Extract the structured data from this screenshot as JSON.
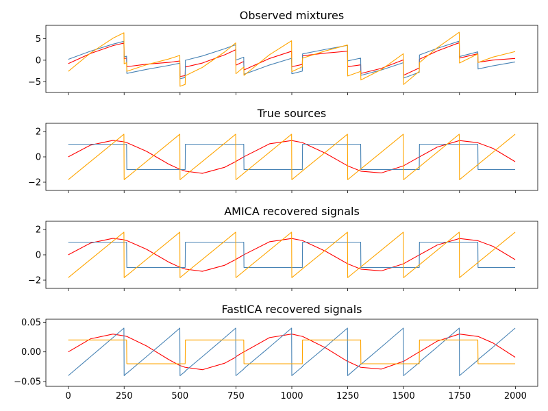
{
  "chart_data": [
    {
      "type": "line",
      "title": "Observed mixtures",
      "x": [
        0,
        100,
        200,
        249,
        250,
        261,
        262,
        350,
        450,
        499,
        500,
        523,
        524,
        600,
        700,
        749,
        750,
        785,
        786,
        900,
        999,
        1000,
        1047,
        1048,
        1150,
        1249,
        1250,
        1308,
        1309,
        1400,
        1499,
        1500,
        1570,
        1571,
        1650,
        1749,
        1750,
        1832,
        1833,
        1900,
        1999
      ],
      "xlim": [
        -100,
        2100
      ],
      "xticks": [
        0,
        250,
        500,
        750,
        1000,
        1250,
        1500,
        1750,
        2000
      ],
      "ylim": [
        -7.5,
        8.1
      ],
      "yticks": [
        {
          "value": -5,
          "label": "−5"
        },
        0,
        5
      ],
      "series": [
        {
          "color": "red",
          "values": [
            -0.8,
            1.57,
            3.38,
            3.98,
            0.38,
            0.49,
            -1.51,
            -0.92,
            -0.5,
            -0.19,
            -3.78,
            -3.59,
            -1.58,
            -0.66,
            1.26,
            2.42,
            -1.16,
            -0.3,
            -2.27,
            0.39,
            2.08,
            -1.51,
            -0.99,
            1.02,
            1.65,
            2.09,
            -1.51,
            -1.08,
            -3.08,
            -1.91,
            0.08,
            -3.5,
            -1.8,
            0.22,
            2.13,
            4.07,
            0.49,
            1.5,
            -0.49,
            0.03,
            0.41
          ]
        },
        {
          "color": "steelblue",
          "values": [
            0.2,
            2.11,
            3.73,
            4.39,
            0.79,
            0.93,
            -3.07,
            -2.14,
            -1.21,
            -0.7,
            -4.29,
            -4.03,
            -0.02,
            0.99,
            2.67,
            3.6,
            0.02,
            0.7,
            -3.27,
            -1.12,
            0.44,
            -3.15,
            -2.55,
            1.46,
            2.51,
            3.44,
            -0.16,
            0.48,
            -3.52,
            -2.28,
            -0.57,
            -4.15,
            -2.8,
            1.22,
            2.75,
            4.43,
            0.85,
            1.94,
            -2.04,
            -1.3,
            -0.4
          ]
        },
        {
          "color": "orange",
          "values": [
            -2.6,
            1.68,
            5.11,
            6.37,
            -0.83,
            -0.58,
            -2.58,
            -1.06,
            0.29,
            1.11,
            -6.07,
            -5.62,
            -3.6,
            -1.67,
            1.93,
            4.02,
            -3.14,
            -1.6,
            -3.54,
            1.27,
            4.52,
            -2.66,
            -1.54,
            0.48,
            2.16,
            3.53,
            -3.67,
            -2.6,
            -4.6,
            -2.19,
            1.51,
            -5.65,
            -2.6,
            -0.56,
            2.88,
            6.5,
            -0.66,
            1.44,
            -0.53,
            0.73,
            2.01
          ]
        }
      ]
    },
    {
      "type": "line",
      "title": "True sources",
      "x": [
        0,
        100,
        200,
        249,
        250,
        261,
        262,
        350,
        450,
        499,
        500,
        523,
        524,
        600,
        700,
        749,
        750,
        785,
        786,
        900,
        999,
        1000,
        1047,
        1048,
        1150,
        1249,
        1250,
        1308,
        1309,
        1400,
        1499,
        1500,
        1570,
        1571,
        1650,
        1749,
        1750,
        1832,
        1833,
        1900,
        1999
      ],
      "xlim": [
        -100,
        2100
      ],
      "xticks": [
        0,
        250,
        500,
        750,
        1000,
        1250,
        1500,
        1750,
        2000
      ],
      "ylim": [
        -2.65,
        2.65
      ],
      "yticks": [
        {
          "value": -2,
          "label": "−2"
        },
        0,
        2
      ],
      "series": [
        {
          "color": "red",
          "values": [
            0,
            0.93,
            1.3,
            1.19,
            1.18,
            1.13,
            1.12,
            0.44,
            -0.58,
            -0.98,
            -0.98,
            -1.12,
            -1.13,
            -1.3,
            -0.82,
            -0.37,
            -0.36,
            0,
            0.01,
            1.03,
            1.29,
            1.29,
            1.13,
            1.12,
            0.29,
            -0.7,
            -0.71,
            -1.12,
            -1.13,
            -1.27,
            -0.71,
            -0.7,
            -0.01,
            0,
            0.77,
            1.28,
            1.29,
            1.12,
            1.11,
            0.67,
            -0.38
          ]
        },
        {
          "color": "steelblue",
          "values": [
            1,
            1,
            1,
            1,
            1,
            1,
            -1,
            -1,
            -1,
            -1,
            -1,
            -1,
            1,
            1,
            1,
            1,
            1,
            1,
            -1,
            -1,
            -1,
            -1,
            -1,
            1,
            1,
            1,
            1,
            1,
            -1,
            -1,
            -1,
            -1,
            -1,
            1,
            1,
            1,
            1,
            1,
            -1,
            -1,
            -1
          ]
        },
        {
          "color": "orange",
          "values": [
            -1.8,
            -0.36,
            1.08,
            1.79,
            -1.8,
            -1.64,
            -1.63,
            -0.36,
            1.08,
            1.79,
            -1.8,
            -1.47,
            -1.45,
            -0.36,
            1.08,
            1.79,
            -1.8,
            -1.3,
            -1.28,
            0.36,
            1.79,
            -1.8,
            -1.12,
            -1.1,
            0.36,
            1.79,
            -1.8,
            -0.96,
            -0.95,
            0.36,
            1.79,
            -1.8,
            -0.79,
            -0.78,
            0.36,
            1.79,
            -1.8,
            -0.62,
            -0.6,
            0.36,
            1.79
          ]
        }
      ]
    },
    {
      "type": "line",
      "title": "AMICA recovered signals",
      "x": [
        0,
        100,
        200,
        249,
        250,
        261,
        262,
        350,
        450,
        499,
        500,
        523,
        524,
        600,
        700,
        749,
        750,
        785,
        786,
        900,
        999,
        1000,
        1047,
        1048,
        1150,
        1249,
        1250,
        1308,
        1309,
        1400,
        1499,
        1500,
        1570,
        1571,
        1650,
        1749,
        1750,
        1832,
        1833,
        1900,
        1999
      ],
      "xlim": [
        -100,
        2100
      ],
      "xticks": [
        0,
        250,
        500,
        750,
        1000,
        1250,
        1500,
        1750,
        2000
      ],
      "ylim": [
        -2.65,
        2.65
      ],
      "yticks": [
        {
          "value": -2,
          "label": "−2"
        },
        0,
        2
      ],
      "series": [
        {
          "color": "red",
          "values": [
            0,
            0.93,
            1.3,
            1.19,
            1.18,
            1.13,
            1.12,
            0.44,
            -0.58,
            -0.98,
            -0.98,
            -1.12,
            -1.13,
            -1.3,
            -0.82,
            -0.37,
            -0.36,
            0,
            0.01,
            1.03,
            1.29,
            1.29,
            1.13,
            1.12,
            0.29,
            -0.7,
            -0.71,
            -1.12,
            -1.13,
            -1.27,
            -0.71,
            -0.7,
            -0.01,
            0,
            0.77,
            1.28,
            1.29,
            1.12,
            1.11,
            0.67,
            -0.38
          ]
        },
        {
          "color": "steelblue",
          "values": [
            1,
            1,
            1,
            1,
            1,
            1,
            -1,
            -1,
            -1,
            -1,
            -1,
            -1,
            1,
            1,
            1,
            1,
            1,
            1,
            -1,
            -1,
            -1,
            -1,
            -1,
            1,
            1,
            1,
            1,
            1,
            -1,
            -1,
            -1,
            -1,
            -1,
            1,
            1,
            1,
            1,
            1,
            -1,
            -1,
            -1
          ]
        },
        {
          "color": "orange",
          "values": [
            -1.8,
            -0.36,
            1.08,
            1.79,
            -1.8,
            -1.64,
            -1.63,
            -0.36,
            1.08,
            1.79,
            -1.8,
            -1.47,
            -1.45,
            -0.36,
            1.08,
            1.79,
            -1.8,
            -1.3,
            -1.28,
            0.36,
            1.79,
            -1.8,
            -1.12,
            -1.1,
            0.36,
            1.79,
            -1.8,
            -0.96,
            -0.95,
            0.36,
            1.79,
            -1.8,
            -0.79,
            -0.78,
            0.36,
            1.79,
            -1.8,
            -0.62,
            -0.6,
            0.36,
            1.79
          ]
        }
      ]
    },
    {
      "type": "line",
      "title": "FastICA recovered signals",
      "x": [
        0,
        100,
        200,
        249,
        250,
        261,
        262,
        350,
        450,
        499,
        500,
        523,
        524,
        600,
        700,
        749,
        750,
        785,
        786,
        900,
        999,
        1000,
        1047,
        1048,
        1150,
        1249,
        1250,
        1308,
        1309,
        1400,
        1499,
        1500,
        1570,
        1571,
        1650,
        1749,
        1750,
        1832,
        1833,
        1900,
        1999
      ],
      "xlim": [
        -100,
        2100
      ],
      "xticks": [
        0,
        250,
        500,
        750,
        1000,
        1250,
        1500,
        1750,
        2000
      ],
      "ylim": [
        -0.058,
        0.055
      ],
      "yticks": [
        {
          "value": -0.05,
          "label": "−0.05"
        },
        {
          "value": 0,
          "label": "0.00"
        },
        0.05
      ],
      "series": [
        {
          "color": "red",
          "values": [
            0,
            0.022,
            0.03,
            0.027,
            0.027,
            0.026,
            0.026,
            0.01,
            -0.013,
            -0.023,
            -0.023,
            -0.026,
            -0.026,
            -0.03,
            -0.019,
            -0.009,
            -0.008,
            0,
            0,
            0.024,
            0.03,
            0.03,
            0.026,
            0.026,
            0.007,
            -0.016,
            -0.016,
            -0.026,
            -0.026,
            -0.029,
            -0.016,
            -0.016,
            0,
            0,
            0.018,
            0.03,
            0.03,
            0.026,
            0.026,
            0.015,
            -0.009
          ]
        },
        {
          "color": "steelblue",
          "values": [
            -0.04,
            -0.008,
            0.024,
            0.04,
            -0.04,
            -0.036,
            -0.036,
            -0.008,
            0.024,
            0.04,
            -0.04,
            -0.033,
            -0.032,
            -0.008,
            0.024,
            0.04,
            -0.04,
            -0.029,
            -0.028,
            0.008,
            0.04,
            -0.04,
            -0.025,
            -0.024,
            0.008,
            0.04,
            -0.04,
            -0.021,
            -0.021,
            0.008,
            0.04,
            -0.04,
            -0.018,
            -0.017,
            0.008,
            0.04,
            -0.04,
            -0.014,
            -0.013,
            0.008,
            0.04
          ]
        },
        {
          "color": "orange",
          "values": [
            0.02,
            0.02,
            0.02,
            0.02,
            0.02,
            0.02,
            -0.02,
            -0.02,
            -0.02,
            -0.02,
            -0.02,
            -0.02,
            0.02,
            0.02,
            0.02,
            0.02,
            0.02,
            0.02,
            -0.02,
            -0.02,
            -0.02,
            -0.02,
            -0.02,
            0.02,
            0.02,
            0.02,
            0.02,
            0.02,
            -0.02,
            -0.02,
            -0.02,
            -0.02,
            -0.02,
            0.02,
            0.02,
            0.02,
            0.02,
            0.02,
            -0.02,
            -0.02,
            -0.02
          ]
        }
      ]
    }
  ]
}
